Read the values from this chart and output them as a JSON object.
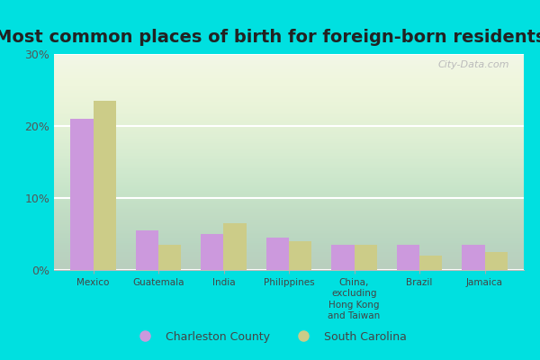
{
  "title": "Most common places of birth for foreign-born residents",
  "categories": [
    "Mexico",
    "Guatemala",
    "India",
    "Philippines",
    "China,\nexcluding\nHong Kong\nand Taiwan",
    "Brazil",
    "Jamaica"
  ],
  "charleston_values": [
    21.0,
    5.5,
    5.0,
    4.5,
    3.5,
    3.5,
    3.5
  ],
  "sc_values": [
    23.5,
    3.5,
    6.5,
    4.0,
    3.5,
    2.0,
    2.5
  ],
  "charleston_color": "#cc99dd",
  "sc_color": "#cccc88",
  "background_outer": "#00e0e0",
  "plot_bg": "#eef5e8",
  "ylim": [
    0,
    30
  ],
  "yticks": [
    0,
    10,
    20,
    30
  ],
  "ytick_labels": [
    "0%",
    "10%",
    "20%",
    "30%"
  ],
  "legend_charleston": "Charleston County",
  "legend_sc": "South Carolina",
  "bar_width": 0.35,
  "title_fontsize": 14,
  "watermark": "City-Data.com"
}
